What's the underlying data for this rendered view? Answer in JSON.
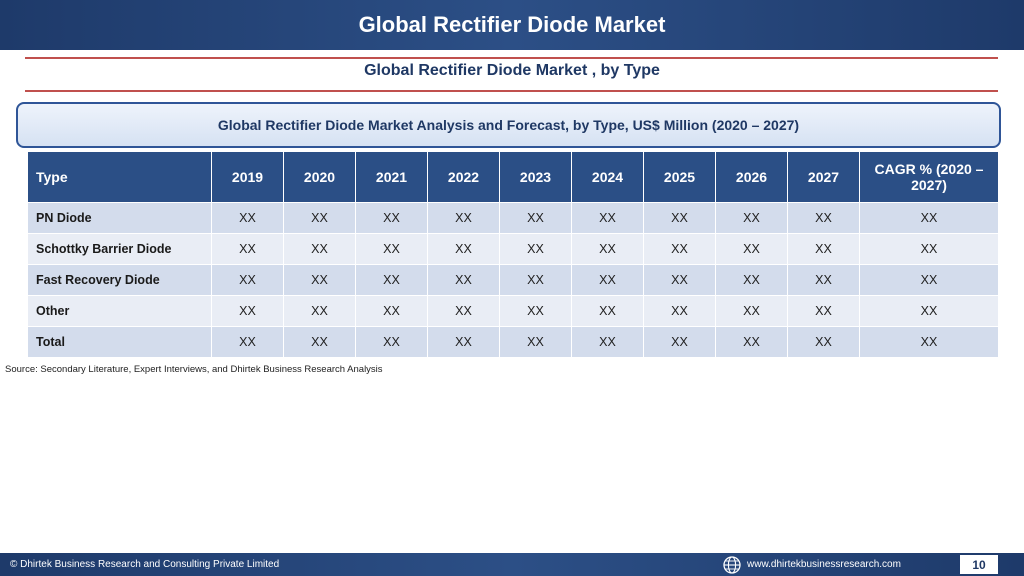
{
  "header": {
    "title": "Global Rectifier Diode Market"
  },
  "subtitle": "Global Rectifier Diode Market , by Type",
  "caption": "Global Rectifier Diode Market  Analysis and Forecast, by Type, US$ Million (2020 – 2027)",
  "table": {
    "headers": [
      "Type",
      "2019",
      "2020",
      "2021",
      "2022",
      "2023",
      "2024",
      "2025",
      "2026",
      "2027",
      "CAGR % (2020 – 2027)"
    ],
    "rows": [
      [
        "PN Diode",
        "XX",
        "XX",
        "XX",
        "XX",
        "XX",
        "XX",
        "XX",
        "XX",
        "XX",
        "XX"
      ],
      [
        "Schottky Barrier Diode",
        "XX",
        "XX",
        "XX",
        "XX",
        "XX",
        "XX",
        "XX",
        "XX",
        "XX",
        "XX"
      ],
      [
        "Fast Recovery Diode",
        "XX",
        "XX",
        "XX",
        "XX",
        "XX",
        "XX",
        "XX",
        "XX",
        "XX",
        "XX"
      ],
      [
        "Other",
        "XX",
        "XX",
        "XX",
        "XX",
        "XX",
        "XX",
        "XX",
        "XX",
        "XX",
        "XX"
      ],
      [
        "Total",
        "XX",
        "XX",
        "XX",
        "XX",
        "XX",
        "XX",
        "XX",
        "XX",
        "XX",
        "XX"
      ]
    ]
  },
  "source": "Source: Secondary Literature, Expert Interviews, and Dhirtek Business Research Analysis",
  "footer": {
    "copyright": "© Dhirtek Business Research and Consulting Private Limited",
    "website": "www.dhirtekbusinessresearch.com",
    "page_number": "10",
    "globe_icon": "globe-icon"
  },
  "colors": {
    "header_bg": "#2b4f86",
    "accent_rule": "#c0504d",
    "row_odd": "#d3dcec",
    "row_even": "#e9edf5"
  }
}
